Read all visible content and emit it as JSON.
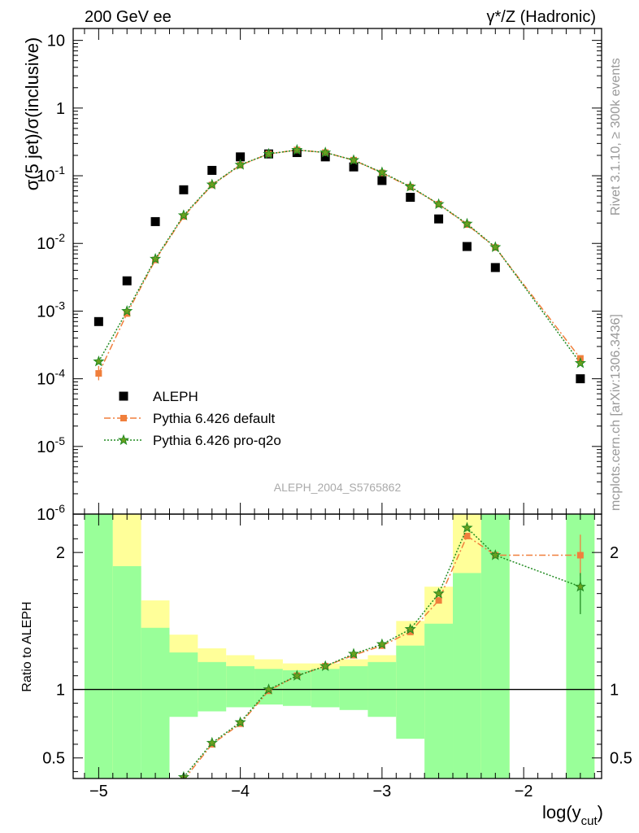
{
  "header": {
    "left": "200 GeV ee",
    "right": "γ*/Z (Hadronic)"
  },
  "side_text": {
    "rivet": "Rivet 3.1.10, ≥ 300k events",
    "mcplots": "mcplots.cern.ch [arXiv:1306.3436]"
  },
  "watermark": "ALEPH_2004_S5765862",
  "colors": {
    "data": "#000000",
    "default": "#f07f3c",
    "proq2o": "#228b22",
    "band_inner": "#99ff99",
    "band_outer": "#ffff99"
  },
  "chart_data": [
    {
      "type": "scatter",
      "title": "",
      "ylabel": "σ(5 jet)/σ(inclusive)",
      "yscale": "log",
      "ylim": [
        1e-06,
        15
      ],
      "xlim": [
        -5.18,
        -1.45
      ],
      "ytick_labels": [
        {
          "value": 10,
          "label": "10"
        },
        {
          "value": 1,
          "label": "1"
        },
        {
          "value": 0.1,
          "label": "10^-1"
        },
        {
          "value": 0.01,
          "label": "10^-2"
        },
        {
          "value": 0.001,
          "label": "10^-3"
        },
        {
          "value": 0.0001,
          "label": "10^-4"
        },
        {
          "value": 1e-05,
          "label": "10^-5"
        },
        {
          "value": 1e-06,
          "label": "10^-6"
        }
      ],
      "legend": {
        "position": "bottom-left",
        "entries": [
          "ALEPH",
          "Pythia 6.426 default",
          "Pythia 6.426 pro-q2o"
        ]
      },
      "series": [
        {
          "name": "ALEPH",
          "style": "square",
          "x": [
            -5.0,
            -4.8,
            -4.6,
            -4.4,
            -4.2,
            -4.0,
            -3.8,
            -3.6,
            -3.4,
            -3.2,
            -3.0,
            -2.8,
            -2.6,
            -2.4,
            -2.2,
            -1.6
          ],
          "y": [
            0.0007,
            0.0028,
            0.021,
            0.062,
            0.12,
            0.19,
            0.21,
            0.22,
            0.19,
            0.135,
            0.085,
            0.048,
            0.023,
            0.009,
            0.0044,
            0.0001
          ]
        },
        {
          "name": "Pythia 6.426 default",
          "style": "dashdot-square",
          "x": [
            -5.0,
            -4.8,
            -4.6,
            -4.4,
            -4.2,
            -4.0,
            -3.8,
            -3.6,
            -3.4,
            -3.2,
            -3.0,
            -2.8,
            -2.6,
            -2.4,
            -2.2,
            -1.6
          ],
          "y": [
            0.00012,
            0.00092,
            0.0057,
            0.025,
            0.073,
            0.143,
            0.21,
            0.24,
            0.22,
            0.17,
            0.11,
            0.068,
            0.038,
            0.019,
            0.0087,
            0.0002
          ]
        },
        {
          "name": "Pythia 6.426 pro-q2o",
          "style": "dotted-star",
          "x": [
            -5.0,
            -4.8,
            -4.6,
            -4.4,
            -4.2,
            -4.0,
            -3.8,
            -3.6,
            -3.4,
            -3.2,
            -3.0,
            -2.8,
            -2.6,
            -2.4,
            -2.2,
            -1.6
          ],
          "y": [
            0.00018,
            0.001,
            0.0059,
            0.026,
            0.074,
            0.145,
            0.21,
            0.24,
            0.22,
            0.17,
            0.112,
            0.069,
            0.038,
            0.0195,
            0.0088,
            0.00017
          ]
        }
      ]
    },
    {
      "type": "scatter",
      "title": "",
      "ylabel": "Ratio to ALEPH",
      "xlabel": "log(y_cut)",
      "xlim": [
        -5.18,
        -1.45
      ],
      "ylim": [
        0.35,
        2.28
      ],
      "x_ticks": [
        -5,
        -4,
        -3,
        -2
      ],
      "x_tick_labels": [
        "−5",
        "−4",
        "−3",
        "−2"
      ],
      "y_ticks": [
        0.5,
        1,
        2
      ],
      "y_tick_labels": [
        "0.5",
        "1",
        "2"
      ],
      "bins": [
        {
          "lo": -5.1,
          "hi": -4.9,
          "inner": [
            0.35,
            2.28
          ],
          "outer": [
            0.35,
            2.28
          ]
        },
        {
          "lo": -4.9,
          "hi": -4.7,
          "inner": [
            0.35,
            1.9
          ],
          "outer": [
            0.35,
            2.28
          ]
        },
        {
          "lo": -4.7,
          "hi": -4.5,
          "inner": [
            0.35,
            1.45
          ],
          "outer": [
            0.7,
            1.65
          ]
        },
        {
          "lo": -4.5,
          "hi": -4.3,
          "inner": [
            0.8,
            1.27
          ],
          "outer": [
            0.86,
            1.4
          ]
        },
        {
          "lo": -4.3,
          "hi": -4.1,
          "inner": [
            0.84,
            1.2
          ],
          "outer": [
            0.9,
            1.3
          ]
        },
        {
          "lo": -4.1,
          "hi": -3.9,
          "inner": [
            0.87,
            1.17
          ],
          "outer": [
            0.92,
            1.25
          ]
        },
        {
          "lo": -3.9,
          "hi": -3.7,
          "inner": [
            0.89,
            1.15
          ],
          "outer": [
            0.93,
            1.22
          ]
        },
        {
          "lo": -3.7,
          "hi": -3.5,
          "inner": [
            0.88,
            1.14
          ],
          "outer": [
            0.92,
            1.19
          ]
        },
        {
          "lo": -3.5,
          "hi": -3.3,
          "inner": [
            0.87,
            1.15
          ],
          "outer": [
            0.91,
            1.19
          ]
        },
        {
          "lo": -3.3,
          "hi": -3.1,
          "inner": [
            0.85,
            1.17
          ],
          "outer": [
            0.9,
            1.22
          ]
        },
        {
          "lo": -3.1,
          "hi": -2.9,
          "inner": [
            0.8,
            1.2
          ],
          "outer": [
            0.87,
            1.25
          ]
        },
        {
          "lo": -2.9,
          "hi": -2.7,
          "inner": [
            0.64,
            1.32
          ],
          "outer": [
            0.75,
            1.5
          ]
        },
        {
          "lo": -2.7,
          "hi": -2.5,
          "inner": [
            0.35,
            1.48
          ],
          "outer": [
            0.64,
            1.75
          ]
        },
        {
          "lo": -2.5,
          "hi": -2.3,
          "inner": [
            0.35,
            1.85
          ],
          "outer": [
            0.35,
            2.28
          ]
        },
        {
          "lo": -2.3,
          "hi": -2.1,
          "inner": [
            0.35,
            2.28
          ],
          "outer": [
            0.35,
            2.28
          ]
        },
        {
          "lo": -1.7,
          "hi": -1.5,
          "inner": [
            0.35,
            2.28
          ],
          "outer": [
            0.35,
            2.28
          ]
        }
      ],
      "series": [
        {
          "name": "Pythia 6.426 default",
          "x": [
            -4.4,
            -4.2,
            -4.0,
            -3.8,
            -3.6,
            -3.4,
            -3.2,
            -3.0,
            -2.8,
            -2.6,
            -2.4,
            -2.2,
            -1.6
          ],
          "y": [
            0.34,
            0.6,
            0.75,
            0.99,
            1.1,
            1.17,
            1.25,
            1.32,
            1.42,
            1.65,
            2.12,
            1.98,
            1.98
          ]
        },
        {
          "name": "Pythia 6.426 pro-q2o",
          "x": [
            -4.4,
            -4.2,
            -4.0,
            -3.8,
            -3.6,
            -3.4,
            -3.2,
            -3.0,
            -2.8,
            -2.6,
            -2.4,
            -2.2,
            -1.6
          ],
          "y": [
            0.36,
            0.61,
            0.76,
            1.0,
            1.1,
            1.17,
            1.26,
            1.33,
            1.44,
            1.7,
            2.18,
            1.98,
            1.75
          ]
        }
      ]
    }
  ]
}
